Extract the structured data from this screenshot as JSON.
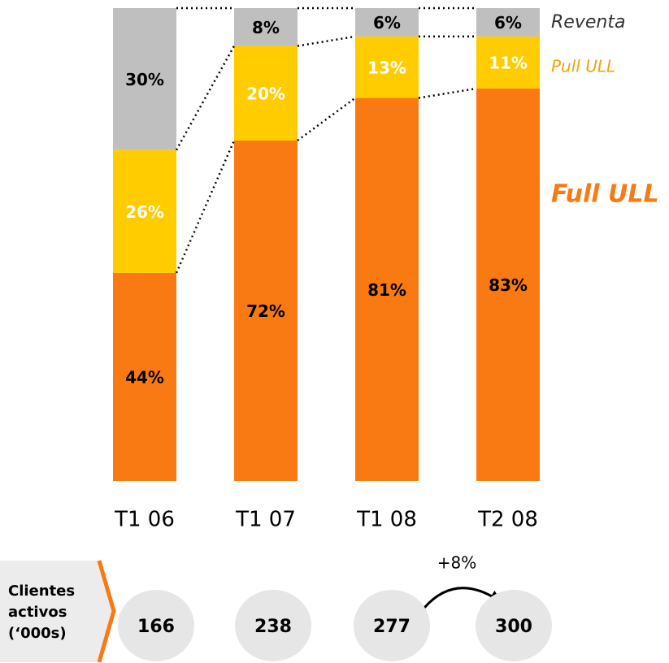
{
  "chart_data": {
    "type": "stacked_bar",
    "categories": [
      "T1 06",
      "T1 07",
      "T1 08",
      "T2 08"
    ],
    "ylim": [
      0,
      100
    ],
    "series": [
      {
        "name": "Full ULL",
        "color": "#f97a12",
        "values": [
          44,
          72,
          81,
          83
        ],
        "value_labels": [
          "44%",
          "72%",
          "81%",
          "83%"
        ]
      },
      {
        "name": "Pull ULL",
        "color": "#ffcc00",
        "values": [
          26,
          20,
          13,
          11
        ],
        "value_labels": [
          "26%",
          "20%",
          "13%",
          "11%"
        ]
      },
      {
        "name": "Reventa",
        "color": "#bfbfbf",
        "values": [
          30,
          8,
          6,
          6
        ],
        "value_labels": [
          "30%",
          "8%",
          "6%",
          "6%"
        ]
      }
    ],
    "customers_label": [
      "Clientes",
      "activos",
      "(‘000s)"
    ],
    "customers": [
      166,
      238,
      277,
      300
    ],
    "growth_annotation": "+8%"
  }
}
